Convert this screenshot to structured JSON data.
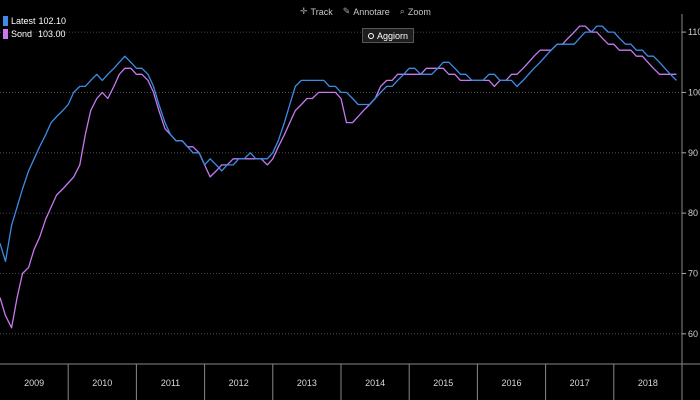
{
  "legend": {
    "items": [
      {
        "name": "Latest",
        "value": "102.10",
        "color": "#3c8ce6"
      },
      {
        "name": "Sond",
        "value": "103.00",
        "color": "#c878f0"
      }
    ]
  },
  "toolbar": {
    "track_label": "Track",
    "annotate_label": "Annotare",
    "zoom_label": "Zoom",
    "refresh_label": "Aggiorn"
  },
  "chart_data": {
    "type": "line",
    "title": "",
    "xlabel": "",
    "ylabel": "",
    "x_ticks": [
      "2009",
      "2010",
      "2011",
      "2012",
      "2013",
      "2014",
      "2015",
      "2016",
      "2017",
      "2018"
    ],
    "y_ticks": [
      60,
      70,
      80,
      90,
      100,
      110
    ],
    "ylim": [
      55,
      113
    ],
    "xlim": [
      2009.0,
      2019.0
    ],
    "grid": "horizontal dotted",
    "y_axis_side": "right",
    "legend_position": "top-left",
    "series": [
      {
        "name": "Latest",
        "color": "#3c8ce6",
        "x": [
          2009.0,
          2009.08,
          2009.17,
          2009.25,
          2009.33,
          2009.42,
          2009.5,
          2009.58,
          2009.67,
          2009.75,
          2009.83,
          2009.92,
          2010.0,
          2010.08,
          2010.17,
          2010.25,
          2010.33,
          2010.42,
          2010.5,
          2010.58,
          2010.67,
          2010.75,
          2010.83,
          2010.92,
          2011.0,
          2011.08,
          2011.17,
          2011.25,
          2011.33,
          2011.42,
          2011.5,
          2011.58,
          2011.67,
          2011.75,
          2011.83,
          2011.92,
          2012.0,
          2012.08,
          2012.17,
          2012.25,
          2012.33,
          2012.42,
          2012.5,
          2012.58,
          2012.67,
          2012.75,
          2012.83,
          2012.92,
          2013.0,
          2013.08,
          2013.17,
          2013.25,
          2013.33,
          2013.42,
          2013.5,
          2013.58,
          2013.67,
          2013.75,
          2013.83,
          2013.92,
          2014.0,
          2014.08,
          2014.17,
          2014.25,
          2014.33,
          2014.42,
          2014.5,
          2014.58,
          2014.67,
          2014.75,
          2014.83,
          2014.92,
          2015.0,
          2015.08,
          2015.17,
          2015.25,
          2015.33,
          2015.42,
          2015.5,
          2015.58,
          2015.67,
          2015.75,
          2015.83,
          2015.92,
          2016.0,
          2016.08,
          2016.17,
          2016.25,
          2016.33,
          2016.42,
          2016.5,
          2016.58,
          2016.67,
          2016.75,
          2016.83,
          2016.92,
          2017.0,
          2017.08,
          2017.17,
          2017.25,
          2017.33,
          2017.42,
          2017.5,
          2017.58,
          2017.67,
          2017.75,
          2017.83,
          2017.92,
          2018.0,
          2018.08,
          2018.17,
          2018.25,
          2018.33,
          2018.42,
          2018.5,
          2018.58,
          2018.67,
          2018.75,
          2018.83,
          2018.92
        ],
        "values": [
          75,
          72,
          78,
          81,
          84,
          87,
          89,
          91,
          93,
          95,
          96,
          97,
          98,
          100,
          101,
          101,
          102,
          103,
          102,
          103,
          104,
          105,
          106,
          105,
          104,
          104,
          103,
          101,
          98,
          95,
          93,
          92,
          92,
          91,
          90,
          90,
          88,
          89,
          88,
          87,
          88,
          88,
          89,
          89,
          90,
          89,
          89,
          89,
          90,
          92,
          95,
          98,
          101,
          102,
          102,
          102,
          102,
          102,
          101,
          101,
          100,
          100,
          99,
          98,
          98,
          98,
          99,
          100,
          101,
          101,
          102,
          103,
          104,
          104,
          103,
          103,
          103,
          104,
          105,
          105,
          104,
          103,
          103,
          102,
          102,
          102,
          103,
          103,
          102,
          102,
          102,
          101,
          102,
          103,
          104,
          105,
          106,
          107,
          108,
          108,
          108,
          108,
          109,
          110,
          110,
          111,
          111,
          110,
          110,
          109,
          108,
          108,
          107,
          107,
          106,
          106,
          105,
          104,
          103,
          102
        ]
      },
      {
        "name": "Sond",
        "color": "#c878f0",
        "x": [
          2009.0,
          2009.08,
          2009.17,
          2009.25,
          2009.33,
          2009.42,
          2009.5,
          2009.58,
          2009.67,
          2009.75,
          2009.83,
          2009.92,
          2010.0,
          2010.08,
          2010.17,
          2010.25,
          2010.33,
          2010.42,
          2010.5,
          2010.58,
          2010.67,
          2010.75,
          2010.83,
          2010.92,
          2011.0,
          2011.08,
          2011.17,
          2011.25,
          2011.33,
          2011.42,
          2011.5,
          2011.58,
          2011.67,
          2011.75,
          2011.83,
          2011.92,
          2012.0,
          2012.08,
          2012.17,
          2012.25,
          2012.33,
          2012.42,
          2012.5,
          2012.58,
          2012.67,
          2012.75,
          2012.83,
          2012.92,
          2013.0,
          2013.08,
          2013.17,
          2013.25,
          2013.33,
          2013.42,
          2013.5,
          2013.58,
          2013.67,
          2013.75,
          2013.83,
          2013.92,
          2014.0,
          2014.08,
          2014.17,
          2014.25,
          2014.33,
          2014.42,
          2014.5,
          2014.58,
          2014.67,
          2014.75,
          2014.83,
          2014.92,
          2015.0,
          2015.08,
          2015.17,
          2015.25,
          2015.33,
          2015.42,
          2015.5,
          2015.58,
          2015.67,
          2015.75,
          2015.83,
          2015.92,
          2016.0,
          2016.08,
          2016.17,
          2016.25,
          2016.33,
          2016.42,
          2016.5,
          2016.58,
          2016.67,
          2016.75,
          2016.83,
          2016.92,
          2017.0,
          2017.08,
          2017.17,
          2017.25,
          2017.33,
          2017.42,
          2017.5,
          2017.58,
          2017.67,
          2017.75,
          2017.83,
          2017.92,
          2018.0,
          2018.08,
          2018.17,
          2018.25,
          2018.33,
          2018.42,
          2018.5,
          2018.58,
          2018.67,
          2018.75,
          2018.83,
          2018.92
        ],
        "values": [
          66,
          63,
          61,
          66,
          70,
          71,
          74,
          76,
          79,
          81,
          83,
          84,
          85,
          86,
          88,
          93,
          97,
          99,
          100,
          99,
          101,
          103,
          104,
          104,
          103,
          103,
          102,
          100,
          97,
          94,
          93,
          92,
          92,
          91,
          91,
          90,
          88,
          86,
          87,
          88,
          88,
          89,
          89,
          89,
          89,
          89,
          89,
          88,
          89,
          91,
          93,
          95,
          97,
          98,
          99,
          99,
          100,
          100,
          100,
          100,
          99,
          95,
          95,
          96,
          97,
          98,
          99,
          101,
          102,
          102,
          103,
          103,
          103,
          103,
          103,
          104,
          104,
          104,
          104,
          103,
          103,
          102,
          102,
          102,
          102,
          102,
          102,
          101,
          102,
          102,
          103,
          103,
          104,
          105,
          106,
          107,
          107,
          107,
          108,
          108,
          109,
          110,
          111,
          111,
          110,
          110,
          109,
          108,
          108,
          107,
          107,
          107,
          106,
          106,
          105,
          104,
          103,
          103,
          103,
          103
        ]
      }
    ]
  }
}
